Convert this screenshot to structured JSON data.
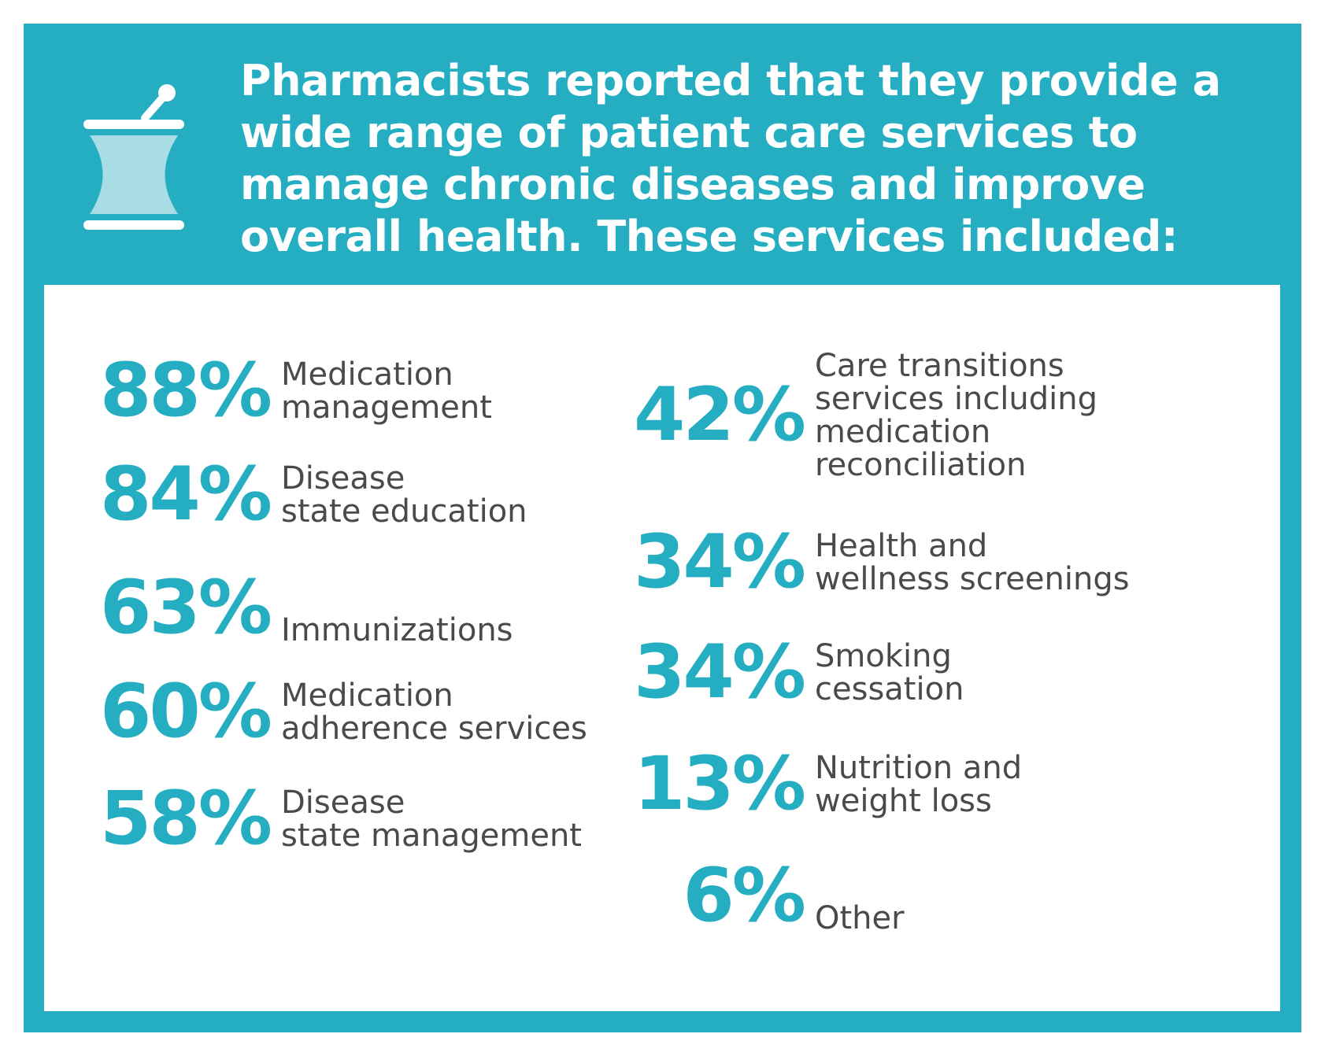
{
  "header": {
    "title": "Pharmacists reported that they provide a wide range of patient care services to manage chronic diseases and improve overall health. These services included:",
    "icon": "mortar-and-pestle-icon"
  },
  "colors": {
    "accent": "#25aec1",
    "icon_fill": "#a8dde5",
    "text": "#4a4a4a",
    "panel": "#ffffff"
  },
  "stats": {
    "left": [
      {
        "percent": "88%",
        "label": "Medication\nmanagement"
      },
      {
        "percent": "84%",
        "label": "Disease\nstate education"
      },
      {
        "percent": "63%",
        "label": "Immunizations"
      },
      {
        "percent": "60%",
        "label": "Medication\nadherence services"
      },
      {
        "percent": "58%",
        "label": "Disease\nstate management"
      }
    ],
    "right": [
      {
        "percent": "42%",
        "label": "Care transitions\nservices including\nmedication\nreconciliation"
      },
      {
        "percent": "34%",
        "label": "Health and\nwellness screenings"
      },
      {
        "percent": "34%",
        "label": "Smoking\ncessation"
      },
      {
        "percent": "13%",
        "label": "Nutrition and\nweight loss"
      },
      {
        "percent": "6%",
        "label": "Other"
      }
    ]
  }
}
